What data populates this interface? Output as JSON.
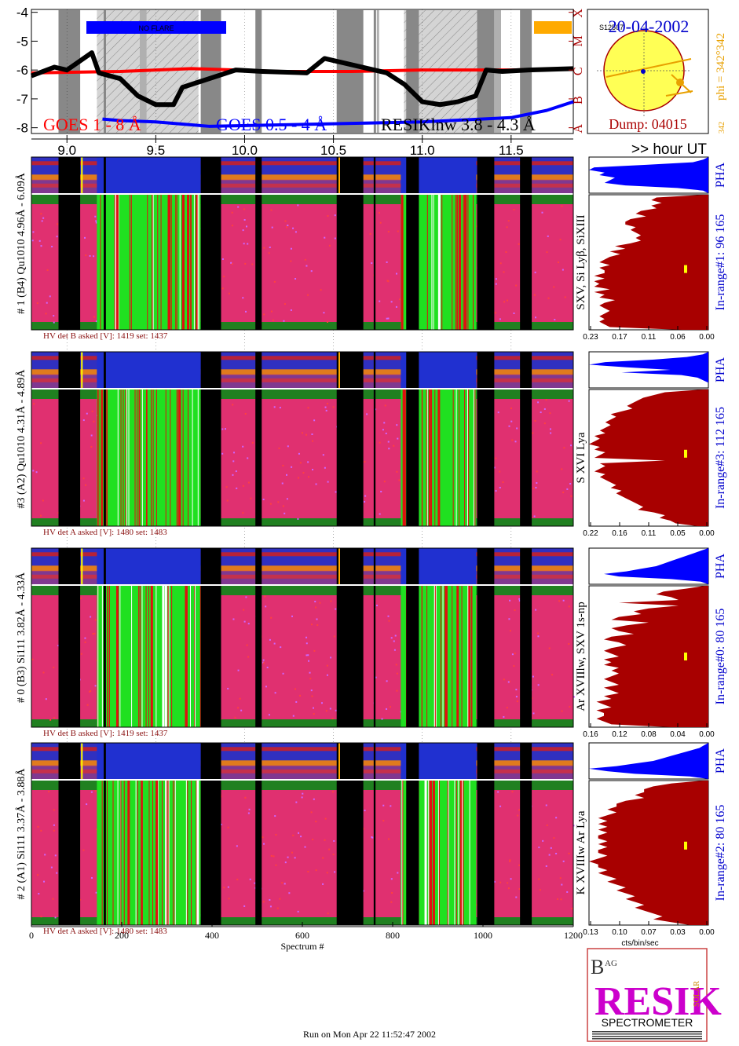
{
  "chart_data": [
    {
      "type": "line",
      "panel": "goes-lightcurve",
      "y_tick_labels": [
        "-4",
        "-5",
        "-6",
        "-7",
        "-8"
      ],
      "ylim": [
        -8.2,
        -3.9
      ],
      "class_labels": [
        "X",
        "M",
        "C",
        "B",
        "A"
      ],
      "x_hour_ticks": [
        "9.0",
        "9.5",
        "10.0",
        "10.5",
        "11.0",
        "11.5"
      ],
      "x_hour_values": [
        9.0,
        9.5,
        10.0,
        10.5,
        11.0,
        11.5
      ],
      "xlim_hours": [
        8.8,
        11.85
      ],
      "hour_axis_label": ">> hour UT",
      "series": [
        {
          "name": "GOES 1 - 8 Å",
          "color": "#ff0000",
          "x": [
            8.8,
            9.3,
            9.7,
            10.2,
            10.6,
            11.0,
            11.5,
            11.85
          ],
          "y": [
            -6.1,
            -6.05,
            -5.95,
            -6.05,
            -6.05,
            -6.0,
            -6.0,
            -5.95
          ]
        },
        {
          "name": "GOES 0.5 - 4 Å",
          "color": "#0000ff",
          "x": [
            9.2,
            9.3,
            9.5,
            9.8,
            10.2,
            10.6,
            11.0,
            11.5,
            11.7,
            11.85
          ],
          "y": [
            -7.7,
            -7.75,
            -7.8,
            -7.95,
            -7.9,
            -7.85,
            -7.8,
            -7.65,
            -7.4,
            -7.1
          ]
        },
        {
          "name": "RESIKlnw 3.8 - 4.3 Å",
          "color": "#000000",
          "x": [
            8.8,
            8.93,
            9.0,
            9.14,
            9.18,
            9.3,
            9.4,
            9.5,
            9.6,
            9.65,
            9.95,
            10.1,
            10.35,
            10.45,
            10.8,
            10.9,
            11.0,
            11.1,
            11.2,
            11.3,
            11.36,
            11.45,
            11.6,
            11.85
          ],
          "y": [
            -6.2,
            -5.9,
            -6.0,
            -5.4,
            -6.1,
            -6.3,
            -6.9,
            -7.2,
            -7.2,
            -6.6,
            -6.0,
            -6.05,
            -6.1,
            -5.6,
            -6.1,
            -6.5,
            -7.1,
            -7.2,
            -7.1,
            -6.9,
            -6.0,
            -6.05,
            -6.0,
            -5.95
          ]
        }
      ],
      "flare_bar_label": "NO FLARE",
      "date": "20-04-2002",
      "dump_label": "Dump: 04015",
      "phi_label": "phi = 342°342",
      "phi_small_label": "342",
      "sun_label": "S12507"
    },
    {
      "type": "heatmap",
      "panel": "detector-1",
      "spectrum_id_label": "# 1 (B4) Qu1010 4.96Å - 6.09Å",
      "line_label": "SXV, Si Lyβ, SiXIII",
      "inrange_label": "In-range#1:  96 165",
      "pha_label": "PHA",
      "hv_label": "HV det B asked [V]:  1419 set:  1437",
      "pha_ticks": [
        "0.23",
        "0.17",
        "0.11",
        "0.06",
        "0.00"
      ],
      "pha_xlim": [
        0.23,
        0.0
      ],
      "profile_ylim": [
        0,
        165
      ],
      "profile_marker_y": 0.55,
      "profile": [
        0.008,
        0.1,
        0.11,
        0.09,
        0.11,
        0.1,
        0.13,
        0.14,
        0.12,
        0.15,
        0.16,
        0.16,
        0.14,
        0.15,
        0.14,
        0.13,
        0.14,
        0.13,
        0.15,
        0.18,
        0.16,
        0.19,
        0.17,
        0.19,
        0.2,
        0.21,
        0.19,
        0.21,
        0.2,
        0.2,
        0.22,
        0.2,
        0.22,
        0.21,
        0.22,
        0.19,
        0.22,
        0.2,
        0.21,
        0.18,
        0.2,
        0.21,
        0.2,
        0.19,
        0.2,
        0.21,
        0.2,
        0.21,
        0.2,
        0.19,
        0.05
      ],
      "pha": [
        0.0,
        0.01,
        0.03,
        0.12,
        0.22,
        0.23,
        0.2,
        0.21,
        0.18,
        0.19,
        0.2,
        0.16,
        0.06,
        0.01,
        0.0
      ]
    },
    {
      "type": "heatmap",
      "panel": "detector-3",
      "spectrum_id_label": "#3 (A2) Qu1010  4.31Å - 4.89Å",
      "line_label": "S XVI Lya",
      "inrange_label": "In-range#3:  112 165",
      "pha_label": "PHA",
      "hv_label": "HV det A asked [V]:  1480 set:  1483",
      "pha_ticks": [
        "0.22",
        "0.16",
        "0.11",
        "0.05",
        "0.00"
      ],
      "pha_xlim": [
        0.22,
        0.0
      ],
      "profile_ylim": [
        0,
        165
      ],
      "profile_marker_y": 0.47,
      "profile": [
        0.01,
        0.08,
        0.1,
        0.12,
        0.13,
        0.14,
        0.15,
        0.14,
        0.16,
        0.18,
        0.17,
        0.18,
        0.19,
        0.18,
        0.19,
        0.2,
        0.19,
        0.21,
        0.2,
        0.21,
        0.22,
        0.2,
        0.21,
        0.19,
        0.2,
        0.21,
        0.08,
        0.2,
        0.19,
        0.2,
        0.21,
        0.19,
        0.2,
        0.19,
        0.18,
        0.17,
        0.18,
        0.16,
        0.17,
        0.16,
        0.15,
        0.14,
        0.13,
        0.12,
        0.13,
        0.1,
        0.08,
        0.09,
        0.07,
        0.06,
        0.02
      ],
      "pha": [
        0.0,
        0.01,
        0.04,
        0.1,
        0.19,
        0.22,
        0.15,
        0.07,
        0.16,
        0.05,
        0.02,
        0.01,
        0.0,
        0.0,
        0.0
      ]
    },
    {
      "type": "heatmap",
      "panel": "detector-0",
      "spectrum_id_label": "# 0 (B3) Si111  3.82Å - 4.33Å",
      "line_label": "Ar XVIIlw,  SXV 1s-np",
      "inrange_label": "In-range#0:   80 165",
      "pha_label": "PHA",
      "hv_label": "HV det B asked [V]:  1419 set:  1437",
      "pha_ticks": [
        "0.16",
        "0.12",
        "0.08",
        "0.04",
        "0.00"
      ],
      "pha_xlim": [
        0.16,
        0.0
      ],
      "profile_ylim": [
        0,
        165
      ],
      "profile_marker_y": 0.5,
      "profile": [
        0.005,
        0.03,
        0.06,
        0.07,
        0.05,
        0.04,
        0.12,
        0.04,
        0.08,
        0.1,
        0.09,
        0.12,
        0.13,
        0.08,
        0.11,
        0.13,
        0.12,
        0.1,
        0.13,
        0.14,
        0.12,
        0.11,
        0.13,
        0.14,
        0.13,
        0.12,
        0.14,
        0.13,
        0.14,
        0.12,
        0.13,
        0.12,
        0.13,
        0.14,
        0.13,
        0.12,
        0.14,
        0.13,
        0.12,
        0.14,
        0.13,
        0.15,
        0.14,
        0.13,
        0.15,
        0.14,
        0.14,
        0.15,
        0.14,
        0.13,
        0.05
      ],
      "pha": [
        0.0,
        0.01,
        0.02,
        0.03,
        0.04,
        0.05,
        0.06,
        0.07,
        0.09,
        0.11,
        0.14,
        0.12,
        0.05,
        0.01,
        0.0
      ]
    },
    {
      "type": "heatmap",
      "panel": "detector-2",
      "spectrum_id_label": "# 2 (A1) Si111  3.37Å - 3.88Å",
      "line_label": "K XVIIIw  Ar Lya",
      "inrange_label": "In-range#2:   80 165",
      "pha_label": "PHA",
      "hv_label": "HV det A asked [V]:  1480 set:  1483",
      "pha_ticks": [
        "0.13",
        "0.10",
        "0.07",
        "0.03",
        "0.00"
      ],
      "pha_xlim": [
        0.13,
        0.0
      ],
      "profile_ylim": [
        0,
        165
      ],
      "profile_marker_y": 0.45,
      "profile": [
        0.005,
        0.04,
        0.06,
        0.07,
        0.07,
        0.08,
        0.07,
        0.09,
        0.1,
        0.1,
        0.11,
        0.1,
        0.11,
        0.12,
        0.11,
        0.12,
        0.11,
        0.12,
        0.11,
        0.12,
        0.12,
        0.11,
        0.12,
        0.11,
        0.12,
        0.12,
        0.11,
        0.12,
        0.13,
        0.12,
        0.12,
        0.11,
        0.12,
        0.11,
        0.1,
        0.11,
        0.1,
        0.09,
        0.1,
        0.09,
        0.08,
        0.09,
        0.08,
        0.07,
        0.08,
        0.07,
        0.06,
        0.05,
        0.06,
        0.04,
        0.02
      ],
      "pha": [
        0.0,
        0.005,
        0.01,
        0.02,
        0.03,
        0.04,
        0.05,
        0.06,
        0.08,
        0.1,
        0.13,
        0.11,
        0.08,
        0.02,
        0.0
      ]
    }
  ],
  "spectrum_axis": {
    "tick_labels": [
      "0",
      "200",
      "400",
      "600",
      "800",
      "1000",
      "1200"
    ],
    "tick_values": [
      0,
      200,
      400,
      600,
      800,
      1000,
      1200
    ],
    "xlim": [
      0,
      1200
    ],
    "label": "Spectrum #"
  },
  "pha_axis_unit_label": "cts/bin/sec",
  "logo": {
    "text_top": "RESIK",
    "text_bottom": "SPECTROMETER",
    "small_b": "B",
    "small_ag": "AG",
    "side": "SOLAR"
  },
  "footer": "Run on Mon Apr 22 11:52:47 2002",
  "colors": {
    "flare_bar": "#0000ff",
    "orange_bar": "#ffaa00",
    "goes_long": "#ff0000",
    "goes_short": "#0000ff",
    "resik": "#000000",
    "profile_fill": "#a80000",
    "pha_fill": "#0000ff",
    "label_blue": "#0000cc",
    "date_blue": "#0000cc",
    "dump_red": "#aa0000",
    "phi_orange": "#e8a000",
    "hv_label": "#8a1010"
  }
}
